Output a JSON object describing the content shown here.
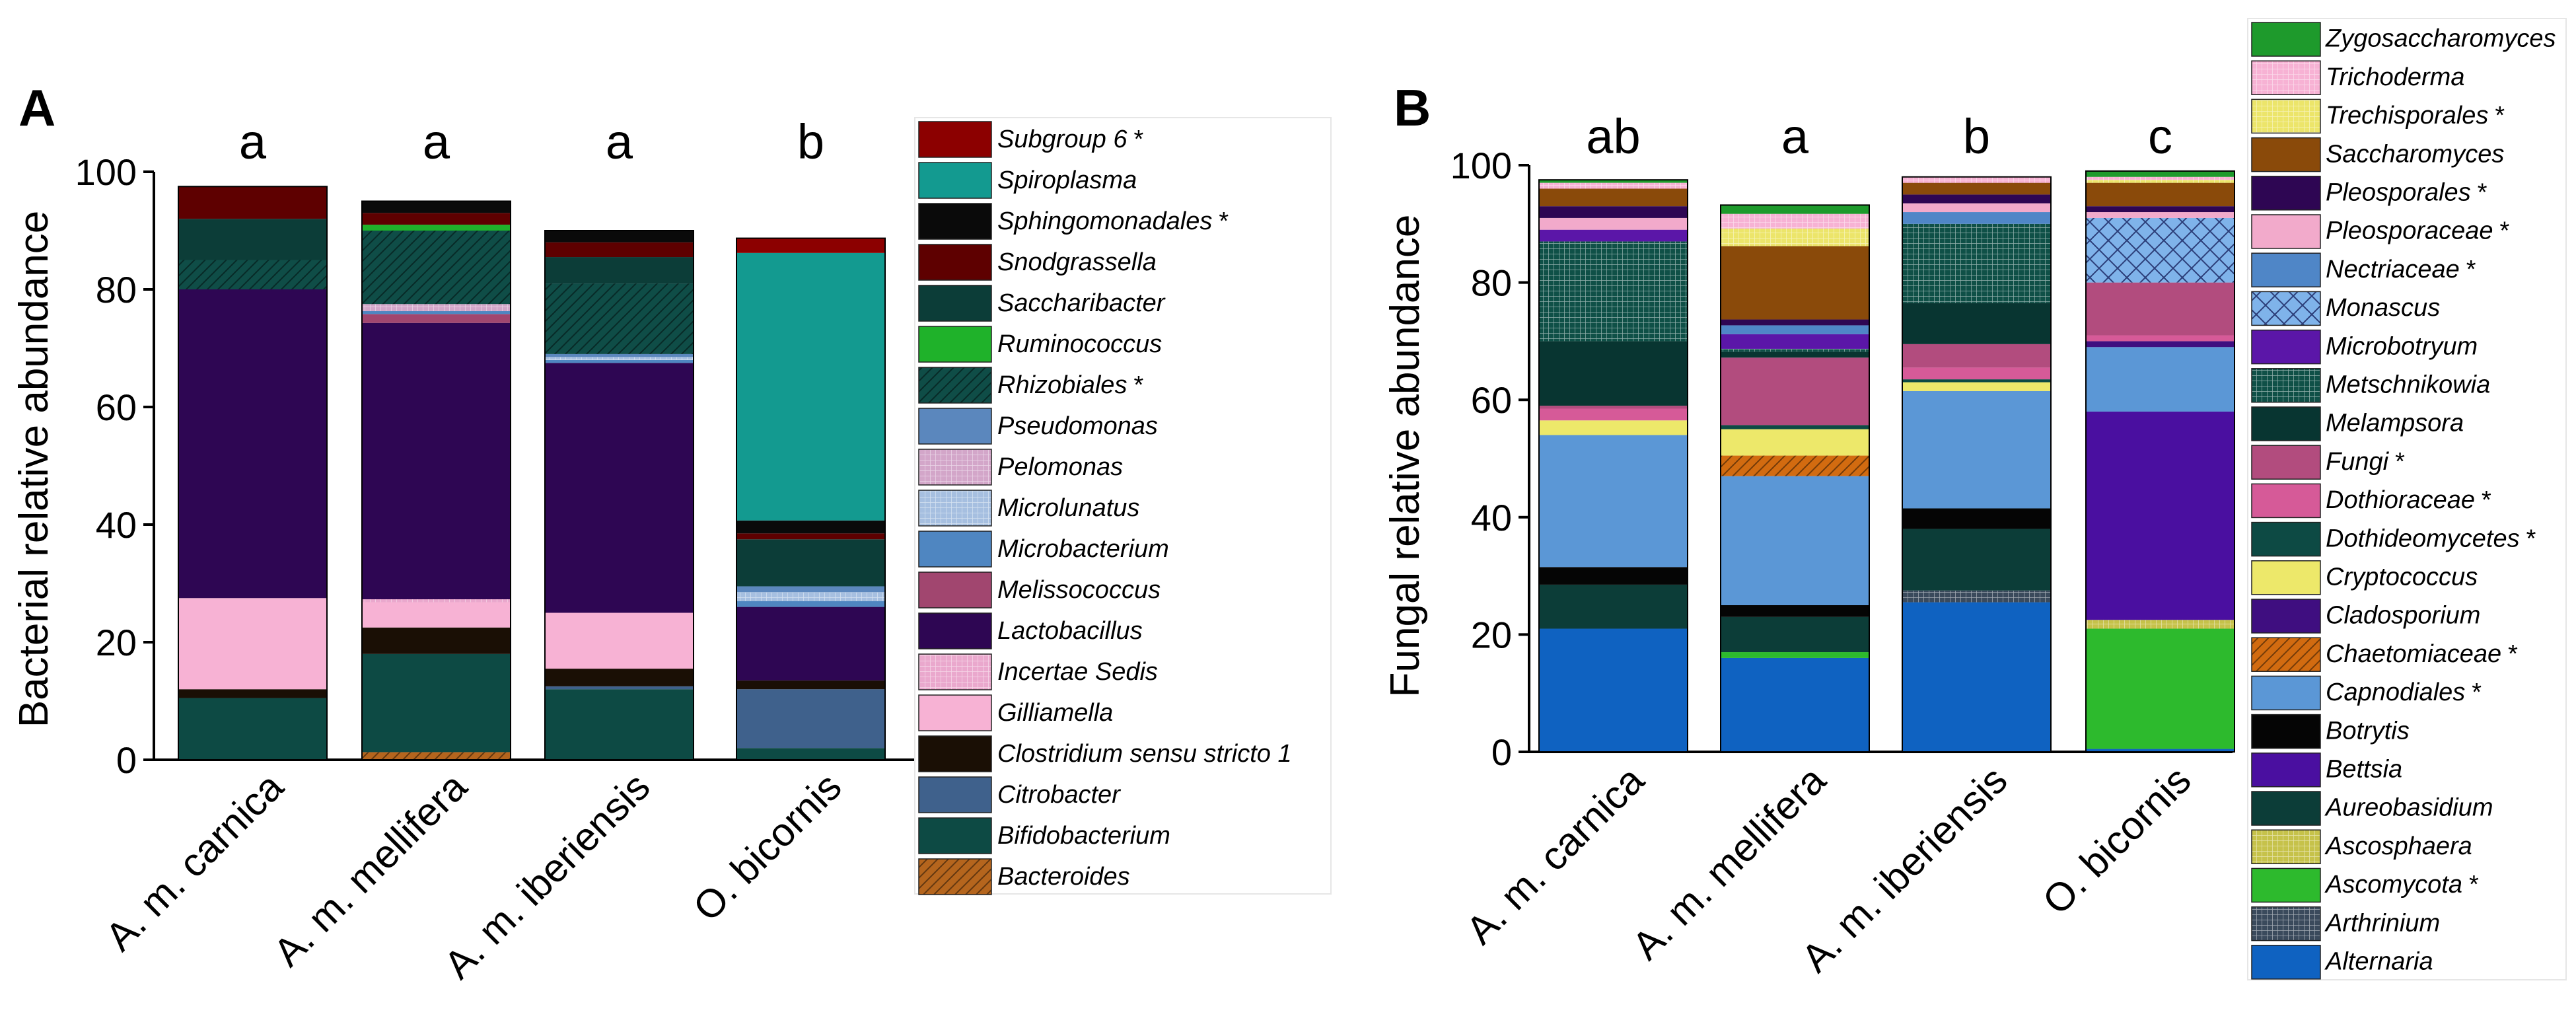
{
  "chart_data": [
    {
      "panel": "A",
      "type": "bar",
      "stacked": true,
      "ylabel": "Bacterial relative abundance",
      "ylim": [
        0,
        100
      ],
      "yticks": [
        0,
        20,
        40,
        60,
        80,
        100
      ],
      "categories": [
        "A. m. carnica",
        "A. m. mellifera",
        "A. m. iberiensis",
        "O. bicornis"
      ],
      "group_letters": [
        "a",
        "a",
        "a",
        "b"
      ],
      "series": [
        {
          "name": "Bacteroides",
          "star": false,
          "color": "#b5651d",
          "pattern": "diag",
          "values": [
            0,
            1.3,
            0,
            0
          ]
        },
        {
          "name": "Bifidobacterium",
          "star": false,
          "color": "#0d4a44",
          "pattern": "",
          "values": [
            10.5,
            16.7,
            12,
            2
          ]
        },
        {
          "name": "Citrobacter",
          "star": false,
          "color": "#3f618c",
          "pattern": "",
          "values": [
            0,
            0,
            0.5,
            10
          ]
        },
        {
          "name": "Clostridium sensu stricto 1",
          "star": false,
          "color": "#1a0f05",
          "pattern": "",
          "values": [
            1.5,
            4.5,
            3,
            1.5
          ]
        },
        {
          "name": "Gilliamella",
          "star": false,
          "color": "#f7b2d4",
          "pattern": "",
          "values": [
            15.5,
            4.3,
            9.5,
            0
          ]
        },
        {
          "name": "Incertae Sedis",
          "star": false,
          "color": "#eaa8cd",
          "pattern": "grid",
          "values": [
            0,
            0.5,
            0,
            0
          ]
        },
        {
          "name": "Lactobacillus",
          "star": false,
          "color": "#2e0653",
          "pattern": "",
          "values": [
            52.5,
            47,
            42.5,
            12.5
          ]
        },
        {
          "name": "Melissococcus",
          "star": false,
          "color": "#a1466f",
          "pattern": "",
          "values": [
            0,
            1.5,
            0,
            0
          ]
        },
        {
          "name": "Microbacterium",
          "star": false,
          "color": "#4f86c1",
          "pattern": "",
          "values": [
            0,
            0.5,
            0.5,
            1
          ]
        },
        {
          "name": "Microlunatus",
          "star": false,
          "color": "#a6bfe0",
          "pattern": "grid",
          "values": [
            0,
            0,
            0.5,
            1.5
          ]
        },
        {
          "name": "Pelomonas",
          "star": false,
          "color": "#d3a6c9",
          "pattern": "grid",
          "values": [
            0,
            1.2,
            0,
            0
          ]
        },
        {
          "name": "Pseudomonas",
          "star": false,
          "color": "#5b87bd",
          "pattern": "",
          "values": [
            0,
            0,
            0.5,
            1
          ]
        },
        {
          "name": "Rhizobiales",
          "star": true,
          "color": "#0f4d47",
          "pattern": "diag",
          "values": [
            5,
            12.5,
            12,
            0
          ]
        },
        {
          "name": "Ruminococcus",
          "star": false,
          "color": "#1fb22a",
          "pattern": "",
          "values": [
            0,
            1,
            0,
            0
          ]
        },
        {
          "name": "Saccharibacter",
          "star": false,
          "color": "#0c3d38",
          "pattern": "",
          "values": [
            7,
            0,
            4.5,
            8
          ]
        },
        {
          "name": "Snodgrassella",
          "star": false,
          "color": "#5e0000",
          "pattern": "",
          "values": [
            5.5,
            2,
            2.5,
            1
          ]
        },
        {
          "name": "Sphingomonadales",
          "star": true,
          "color": "#0a0a0a",
          "pattern": "",
          "values": [
            0,
            2,
            2,
            2.2
          ]
        },
        {
          "name": "Spiroplasma",
          "star": false,
          "color": "#139a90",
          "pattern": "",
          "values": [
            0,
            0,
            0,
            45.5
          ]
        },
        {
          "name": "Subgroup 6",
          "star": true,
          "color": "#8c0000",
          "pattern": "",
          "values": [
            0,
            0,
            0,
            2.5
          ]
        }
      ]
    },
    {
      "panel": "B",
      "type": "bar",
      "stacked": true,
      "ylabel": "Fungal relative abundance",
      "ylim": [
        0,
        100
      ],
      "yticks": [
        0,
        20,
        40,
        60,
        80,
        100
      ],
      "categories": [
        "A. m. carnica",
        "A. m. mellifera",
        "A. m. iberiensis",
        "O. bicornis"
      ],
      "group_letters": [
        "ab",
        "a",
        "b",
        "c"
      ],
      "series": [
        {
          "name": "Alternaria",
          "star": false,
          "color": "#0f62c1",
          "pattern": "",
          "values": [
            21,
            16,
            25.5,
            0.5
          ]
        },
        {
          "name": "Arthrinium",
          "star": false,
          "color": "#3a4a5c",
          "pattern": "grid",
          "values": [
            0,
            0,
            2,
            0
          ]
        },
        {
          "name": "Ascomycota",
          "star": true,
          "color": "#2dba2d",
          "pattern": "",
          "values": [
            0,
            1,
            0,
            20.5
          ]
        },
        {
          "name": "Ascosphaera",
          "star": false,
          "color": "#c6c24a",
          "pattern": "grid",
          "values": [
            0,
            0,
            0,
            1.5
          ]
        },
        {
          "name": "Aureobasidium",
          "star": false,
          "color": "#0c3d38",
          "pattern": "",
          "values": [
            7.5,
            6,
            10.5,
            0
          ]
        },
        {
          "name": "Bettsia",
          "star": false,
          "color": "#4a0fa0",
          "pattern": "",
          "values": [
            0,
            0,
            0,
            35.5
          ]
        },
        {
          "name": "Botrytis",
          "star": false,
          "color": "#050505",
          "pattern": "",
          "values": [
            3,
            2,
            3.5,
            0
          ]
        },
        {
          "name": "Capnodiales",
          "star": true,
          "color": "#5b97d6",
          "pattern": "",
          "values": [
            22.5,
            22,
            20,
            11
          ]
        },
        {
          "name": "Chaetomiaceae",
          "star": true,
          "color": "#d26b10",
          "pattern": "diag",
          "values": [
            0,
            3.5,
            0,
            0
          ]
        },
        {
          "name": "Cladosporium",
          "star": false,
          "color": "#3f0e80",
          "pattern": "",
          "values": [
            0,
            0,
            0,
            1
          ]
        },
        {
          "name": "Cryptococcus",
          "star": false,
          "color": "#ede86a",
          "pattern": "",
          "values": [
            2.5,
            4.5,
            1.5,
            0
          ]
        },
        {
          "name": "Dothideomycetes",
          "star": true,
          "color": "#0d4a44",
          "pattern": "",
          "values": [
            0,
            0.7,
            0.5,
            0
          ]
        },
        {
          "name": "Dothioraceae",
          "star": true,
          "color": "#d65a98",
          "pattern": "",
          "values": [
            2,
            0,
            2,
            1
          ]
        },
        {
          "name": "Fungi",
          "star": true,
          "color": "#b24c7e",
          "pattern": "",
          "values": [
            0.5,
            11.5,
            4,
            9
          ]
        },
        {
          "name": "Melampsora",
          "star": false,
          "color": "#083531",
          "pattern": "",
          "values": [
            11,
            1,
            7,
            0
          ]
        },
        {
          "name": "Metschnikowia",
          "star": false,
          "color": "#0f5047",
          "pattern": "grid",
          "values": [
            17,
            0.5,
            13.5,
            0
          ]
        },
        {
          "name": "Microbotryum",
          "star": false,
          "color": "#5b16a8",
          "pattern": "",
          "values": [
            2,
            2.5,
            0,
            0
          ]
        },
        {
          "name": "Monascus",
          "star": false,
          "color": "#7fb3ea",
          "pattern": "cross",
          "values": [
            0,
            0,
            0,
            11
          ]
        },
        {
          "name": "Nectriaceae",
          "star": true,
          "color": "#4f86c7",
          "pattern": "",
          "values": [
            0,
            1.5,
            2,
            0
          ]
        },
        {
          "name": "Pleosporaceae",
          "star": true,
          "color": "#f2aacb",
          "pattern": "",
          "values": [
            2,
            0,
            1.5,
            1
          ]
        },
        {
          "name": "Pleosporales",
          "star": true,
          "color": "#2e0653",
          "pattern": "",
          "values": [
            2,
            1,
            1.5,
            1
          ]
        },
        {
          "name": "Saccharomyces",
          "star": false,
          "color": "#8a4a0a",
          "pattern": "",
          "values": [
            3,
            12.5,
            2,
            4
          ]
        },
        {
          "name": "Trechisporales",
          "star": true,
          "color": "#ece56a",
          "pattern": "grid",
          "values": [
            0,
            3,
            0,
            0.5
          ]
        },
        {
          "name": "Trichoderma",
          "star": false,
          "color": "#f7b2d4",
          "pattern": "grid",
          "values": [
            1,
            2.5,
            1,
            0.5
          ]
        },
        {
          "name": "Zygosaccharomyces",
          "star": false,
          "color": "#1e9a2c",
          "pattern": "",
          "values": [
            0.5,
            1.5,
            0,
            1
          ]
        }
      ]
    }
  ]
}
